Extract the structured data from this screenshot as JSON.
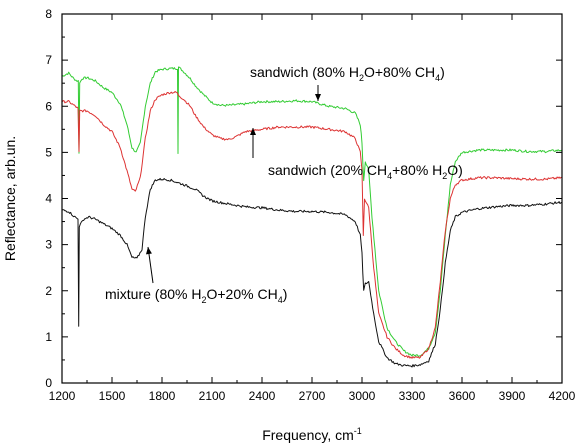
{
  "chart_data": {
    "type": "line",
    "xlabel": "Frequency, cm",
    "xlabel_sup": "-1",
    "ylabel": "Reflectance, arb.un.",
    "xlim": [
      1200,
      4200
    ],
    "ylim": [
      0,
      8
    ],
    "x_ticks": [
      1200,
      1500,
      1800,
      2100,
      2400,
      2700,
      3000,
      3300,
      3600,
      3900,
      4200
    ],
    "y_ticks": [
      0,
      1,
      2,
      3,
      4,
      5,
      6,
      7,
      8
    ],
    "grid": false,
    "legend": "none (inline annotations)",
    "series": [
      {
        "color": "#33cc33",
        "points": [
          [
            1200,
            6.65
          ],
          [
            1240,
            6.72
          ],
          [
            1270,
            6.6
          ],
          [
            1290,
            6.55
          ],
          [
            1298,
            6.55
          ],
          [
            1302,
            5.0
          ],
          [
            1306,
            6.5
          ],
          [
            1320,
            6.6
          ],
          [
            1350,
            6.62
          ],
          [
            1400,
            6.55
          ],
          [
            1450,
            6.4
          ],
          [
            1500,
            6.3
          ],
          [
            1550,
            6.05
          ],
          [
            1590,
            5.6
          ],
          [
            1620,
            5.1
          ],
          [
            1645,
            5.0
          ],
          [
            1670,
            5.2
          ],
          [
            1700,
            6.0
          ],
          [
            1730,
            6.5
          ],
          [
            1760,
            6.75
          ],
          [
            1800,
            6.8
          ],
          [
            1850,
            6.82
          ],
          [
            1880,
            6.82
          ],
          [
            1893,
            6.82
          ],
          [
            1896,
            5.0
          ],
          [
            1899,
            6.85
          ],
          [
            1930,
            6.75
          ],
          [
            1970,
            6.6
          ],
          [
            2000,
            6.45
          ],
          [
            2050,
            6.25
          ],
          [
            2100,
            6.08
          ],
          [
            2150,
            6.02
          ],
          [
            2200,
            6.02
          ],
          [
            2300,
            6.05
          ],
          [
            2400,
            6.1
          ],
          [
            2500,
            6.1
          ],
          [
            2600,
            6.12
          ],
          [
            2700,
            6.1
          ],
          [
            2800,
            6.0
          ],
          [
            2900,
            5.95
          ],
          [
            2960,
            5.85
          ],
          [
            2990,
            5.6
          ],
          [
            3000,
            5.2
          ],
          [
            3010,
            4.4
          ],
          [
            3020,
            4.8
          ],
          [
            3040,
            4.6
          ],
          [
            3060,
            3.6
          ],
          [
            3100,
            2.0
          ],
          [
            3150,
            1.2
          ],
          [
            3200,
            0.9
          ],
          [
            3250,
            0.7
          ],
          [
            3300,
            0.6
          ],
          [
            3350,
            0.6
          ],
          [
            3400,
            0.75
          ],
          [
            3440,
            1.1
          ],
          [
            3470,
            2.0
          ],
          [
            3500,
            3.2
          ],
          [
            3530,
            4.3
          ],
          [
            3560,
            4.8
          ],
          [
            3600,
            5.0
          ],
          [
            3700,
            5.05
          ],
          [
            3800,
            5.05
          ],
          [
            3900,
            5.05
          ],
          [
            4000,
            5.02
          ],
          [
            4100,
            5.02
          ],
          [
            4200,
            5.05
          ]
        ]
      },
      {
        "color": "#dd3333",
        "points": [
          [
            1200,
            6.1
          ],
          [
            1240,
            6.1
          ],
          [
            1280,
            6.0
          ],
          [
            1296,
            5.95
          ],
          [
            1302,
            5.0
          ],
          [
            1306,
            5.9
          ],
          [
            1350,
            5.9
          ],
          [
            1400,
            5.8
          ],
          [
            1450,
            5.6
          ],
          [
            1500,
            5.45
          ],
          [
            1550,
            5.1
          ],
          [
            1590,
            4.6
          ],
          [
            1620,
            4.2
          ],
          [
            1640,
            4.15
          ],
          [
            1670,
            4.45
          ],
          [
            1700,
            5.3
          ],
          [
            1730,
            5.9
          ],
          [
            1760,
            6.15
          ],
          [
            1800,
            6.25
          ],
          [
            1850,
            6.3
          ],
          [
            1890,
            6.3
          ],
          [
            1895,
            6.25
          ],
          [
            1930,
            6.15
          ],
          [
            1970,
            6.0
          ],
          [
            2000,
            5.8
          ],
          [
            2050,
            5.55
          ],
          [
            2100,
            5.38
          ],
          [
            2150,
            5.3
          ],
          [
            2200,
            5.28
          ],
          [
            2250,
            5.35
          ],
          [
            2300,
            5.45
          ],
          [
            2400,
            5.5
          ],
          [
            2500,
            5.55
          ],
          [
            2600,
            5.55
          ],
          [
            2700,
            5.55
          ],
          [
            2800,
            5.5
          ],
          [
            2900,
            5.45
          ],
          [
            2960,
            5.3
          ],
          [
            2990,
            5.0
          ],
          [
            3000,
            4.6
          ],
          [
            3008,
            3.2
          ],
          [
            3015,
            4.0
          ],
          [
            3040,
            3.8
          ],
          [
            3070,
            2.5
          ],
          [
            3100,
            1.5
          ],
          [
            3150,
            1.0
          ],
          [
            3200,
            0.75
          ],
          [
            3250,
            0.6
          ],
          [
            3300,
            0.55
          ],
          [
            3350,
            0.55
          ],
          [
            3400,
            0.75
          ],
          [
            3440,
            1.2
          ],
          [
            3470,
            2.2
          ],
          [
            3500,
            3.3
          ],
          [
            3530,
            4.0
          ],
          [
            3560,
            4.3
          ],
          [
            3600,
            4.4
          ],
          [
            3700,
            4.45
          ],
          [
            3800,
            4.45
          ],
          [
            3900,
            4.43
          ],
          [
            4000,
            4.42
          ],
          [
            4100,
            4.42
          ],
          [
            4200,
            4.45
          ]
        ]
      },
      {
        "color": "#111111",
        "points": [
          [
            1200,
            3.75
          ],
          [
            1240,
            3.72
          ],
          [
            1270,
            3.62
          ],
          [
            1296,
            3.55
          ],
          [
            1300,
            1.25
          ],
          [
            1304,
            3.4
          ],
          [
            1330,
            3.55
          ],
          [
            1360,
            3.6
          ],
          [
            1400,
            3.55
          ],
          [
            1450,
            3.45
          ],
          [
            1500,
            3.35
          ],
          [
            1550,
            3.2
          ],
          [
            1590,
            3.0
          ],
          [
            1620,
            2.72
          ],
          [
            1650,
            2.7
          ],
          [
            1680,
            2.9
          ],
          [
            1700,
            3.6
          ],
          [
            1730,
            4.2
          ],
          [
            1760,
            4.4
          ],
          [
            1800,
            4.42
          ],
          [
            1850,
            4.4
          ],
          [
            1890,
            4.35
          ],
          [
            1930,
            4.3
          ],
          [
            2000,
            4.2
          ],
          [
            2050,
            4.05
          ],
          [
            2100,
            3.95
          ],
          [
            2200,
            3.88
          ],
          [
            2300,
            3.82
          ],
          [
            2400,
            3.8
          ],
          [
            2500,
            3.75
          ],
          [
            2600,
            3.72
          ],
          [
            2700,
            3.72
          ],
          [
            2800,
            3.7
          ],
          [
            2900,
            3.65
          ],
          [
            2960,
            3.5
          ],
          [
            2990,
            3.2
          ],
          [
            3000,
            2.8
          ],
          [
            3010,
            2.0
          ],
          [
            3020,
            2.15
          ],
          [
            3040,
            2.2
          ],
          [
            3070,
            1.5
          ],
          [
            3100,
            0.9
          ],
          [
            3150,
            0.55
          ],
          [
            3200,
            0.42
          ],
          [
            3250,
            0.38
          ],
          [
            3300,
            0.37
          ],
          [
            3350,
            0.4
          ],
          [
            3400,
            0.48
          ],
          [
            3440,
            0.85
          ],
          [
            3470,
            1.6
          ],
          [
            3500,
            2.6
          ],
          [
            3530,
            3.3
          ],
          [
            3560,
            3.6
          ],
          [
            3600,
            3.7
          ],
          [
            3700,
            3.78
          ],
          [
            3800,
            3.82
          ],
          [
            3900,
            3.85
          ],
          [
            4000,
            3.85
          ],
          [
            4100,
            3.88
          ],
          [
            4200,
            3.92
          ]
        ]
      }
    ],
    "annotations": [
      {
        "parts": [
          [
            "sandwich (80% H",
            ""
          ],
          [
            "2",
            "sub"
          ],
          [
            "O+80% CH",
            ""
          ],
          [
            "4",
            "sub"
          ],
          [
            ")",
            ""
          ]
        ]
      },
      {
        "parts": [
          [
            "sandwich (20% CH",
            ""
          ],
          [
            "4",
            "sub"
          ],
          [
            "+80% H",
            ""
          ],
          [
            "2",
            "sub"
          ],
          [
            "O)",
            ""
          ]
        ]
      },
      {
        "parts": [
          [
            "mixture (80% H",
            ""
          ],
          [
            "2",
            "sub"
          ],
          [
            "O+20% CH",
            ""
          ],
          [
            "4",
            "sub"
          ],
          [
            ")",
            ""
          ]
        ]
      }
    ]
  }
}
